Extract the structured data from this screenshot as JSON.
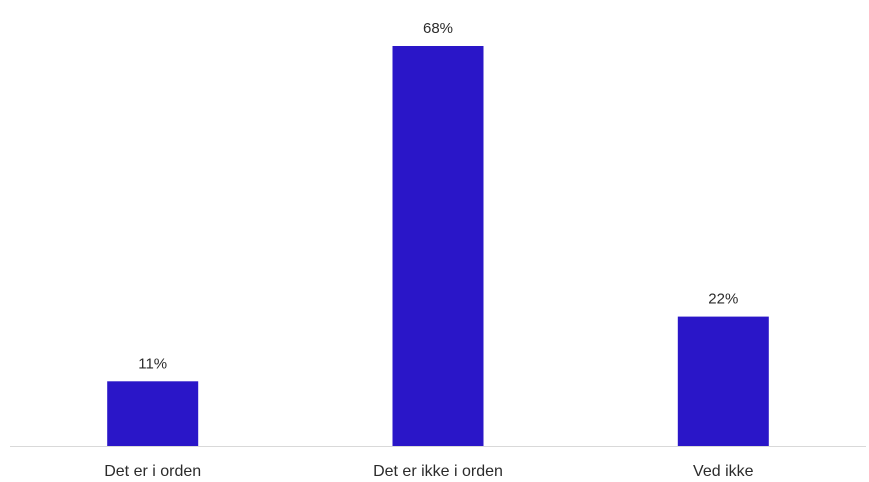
{
  "chart_data": {
    "type": "bar",
    "categories": [
      "Det er i orden",
      "Det er ikke i orden",
      "Ved ikke"
    ],
    "values": [
      11,
      68,
      22
    ],
    "value_labels": [
      "11%",
      "68%",
      "22%"
    ],
    "unit": "%",
    "ylim": [
      0,
      68
    ],
    "grid": false,
    "legend": "none",
    "bar_color": "#2a16c8",
    "baseline_color": "#d9d9d9"
  }
}
